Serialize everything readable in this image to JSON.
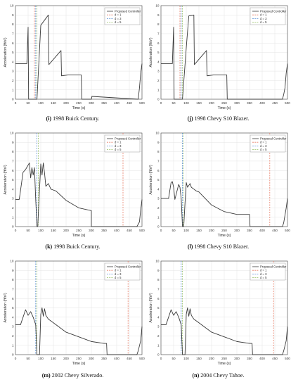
{
  "figure": {
    "legend_labels": [
      "Proposed Controller",
      "d = 1",
      "d = 3",
      "d = 5"
    ],
    "series_colors": {
      "controller": "#3a3a3a",
      "d1": "#e8806a",
      "d3": "#5a8fd6",
      "d5": "#9ac26a"
    },
    "ylabel": "Acceleration (ft/s²)",
    "xlabel": "Time (s)"
  },
  "captions": [
    {
      "tag": "(i)",
      "text": " 1998 Buick Century."
    },
    {
      "tag": "(j)",
      "text": " 1998 Chevy S10 Blazer."
    },
    {
      "tag": "(k)",
      "text": " 1998 Buick Century."
    },
    {
      "tag": "(l)",
      "text": " 1998 Chevy S10 Blazer."
    },
    {
      "tag": "(m)",
      "text": " 2002 Chevy Silverado."
    },
    {
      "tag": "(n)",
      "text": " 2004 Chevy Tahoe."
    }
  ],
  "chart_data": [
    {
      "type": "line",
      "xlim": [
        0,
        500
      ],
      "ylim": [
        0,
        10
      ],
      "xticks": [
        0,
        50,
        100,
        150,
        200,
        250,
        300,
        350,
        400,
        450,
        500
      ],
      "yticks": [
        0,
        1,
        2,
        3,
        4,
        5,
        6,
        7,
        8,
        9,
        10
      ],
      "xlabel": "Time (s)",
      "ylabel": "Acceleration (ft/s²)",
      "legend": "top-right",
      "vlines": [
        {
          "x": 75,
          "color": "#e8806a"
        },
        {
          "x": 80,
          "color": "#5a8fd6"
        },
        {
          "x": 85,
          "color": "#9ac26a"
        }
      ],
      "series": [
        {
          "name": "Proposed Controller",
          "color": "#3a3a3a",
          "x": [
            0,
            10,
            10,
            45,
            50,
            52,
            52,
            80,
            85,
            100,
            130,
            132,
            180,
            182,
            210,
            260,
            262,
            300,
            302,
            485,
            490,
            495,
            500
          ],
          "y": [
            3.8,
            3.8,
            3.8,
            3.8,
            7.7,
            0,
            0,
            0,
            0,
            7.9,
            9.0,
            3.7,
            5.2,
            2.5,
            2.6,
            2.6,
            0,
            0,
            0.3,
            0,
            1.2,
            2.8,
            3.8
          ]
        }
      ]
    },
    {
      "type": "line",
      "xlim": [
        0,
        500
      ],
      "ylim": [
        0,
        10
      ],
      "xticks": [
        0,
        50,
        100,
        150,
        200,
        250,
        300,
        350,
        400,
        450,
        500
      ],
      "yticks": [
        0,
        1,
        2,
        3,
        4,
        5,
        6,
        7,
        8,
        9,
        10
      ],
      "xlabel": "Time (s)",
      "ylabel": "Acceleration (ft/s²)",
      "legend": "top-right",
      "vlines": [
        {
          "x": 75,
          "color": "#e8806a"
        },
        {
          "x": 80,
          "color": "#5a8fd6"
        },
        {
          "x": 85,
          "color": "#9ac26a"
        }
      ],
      "series": [
        {
          "name": "Proposed Controller",
          "color": "#3a3a3a",
          "x": [
            0,
            10,
            45,
            50,
            52,
            52,
            85,
            100,
            110,
            130,
            132,
            180,
            182,
            210,
            260,
            262,
            480,
            485,
            490,
            495,
            500
          ],
          "y": [
            3.8,
            3.8,
            3.8,
            7.7,
            0,
            0,
            0,
            5.5,
            8.9,
            9.0,
            3.7,
            5.2,
            2.5,
            2.6,
            2.6,
            0,
            0,
            0.5,
            1.2,
            2.8,
            3.8
          ]
        }
      ]
    },
    {
      "type": "line",
      "xlim": [
        0,
        500
      ],
      "ylim": [
        0,
        10
      ],
      "xticks": [
        0,
        50,
        100,
        150,
        200,
        250,
        300,
        350,
        400,
        450,
        500
      ],
      "yticks": [
        0,
        1,
        2,
        3,
        4,
        5,
        6,
        7,
        8,
        9,
        10
      ],
      "xlabel": "Time (s)",
      "ylabel": "Acceleration (ft/s²)",
      "legend": "top-right",
      "vlines": [
        {
          "x": 85,
          "color": "#5a8fd6"
        },
        {
          "x": 90,
          "color": "#9ac26a"
        },
        {
          "x": 425,
          "color": "#e8806a"
        }
      ],
      "series": [
        {
          "name": "Proposed Controller",
          "color": "#3a3a3a",
          "x": [
            0,
            15,
            30,
            40,
            55,
            60,
            65,
            70,
            75,
            80,
            85,
            88,
            100,
            105,
            110,
            115,
            120,
            130,
            140,
            150,
            160,
            200,
            250,
            300,
            300,
            480,
            490,
            495,
            500
          ],
          "y": [
            2.9,
            2.9,
            5.8,
            6.1,
            6.8,
            5.2,
            6.3,
            5.5,
            6.3,
            2.9,
            0,
            0,
            6.7,
            5.5,
            6.8,
            5.7,
            4.3,
            4.6,
            4.0,
            3.9,
            3.8,
            2.8,
            2.0,
            1.7,
            0,
            0,
            0.5,
            1.8,
            2.9
          ]
        }
      ]
    },
    {
      "type": "line",
      "xlim": [
        0,
        500
      ],
      "ylim": [
        0,
        10
      ],
      "xticks": [
        0,
        50,
        100,
        150,
        200,
        250,
        300,
        350,
        400,
        450,
        500
      ],
      "yticks": [
        0,
        1,
        2,
        3,
        4,
        5,
        6,
        7,
        8,
        9,
        10
      ],
      "xlabel": "Time (s)",
      "ylabel": "Acceleration (ft/s²)",
      "legend": "top-right",
      "vlines": [
        {
          "x": 85,
          "color": "#5a8fd6"
        },
        {
          "x": 88,
          "color": "#9ac26a"
        },
        {
          "x": 430,
          "color": "#e8806a"
        }
      ],
      "series": [
        {
          "name": "Proposed Controller",
          "color": "#3a3a3a",
          "x": [
            0,
            30,
            40,
            45,
            50,
            55,
            70,
            75,
            80,
            85,
            90,
            95,
            100,
            105,
            115,
            120,
            130,
            140,
            150,
            200,
            250,
            300,
            350,
            352,
            480,
            485,
            495,
            500
          ],
          "y": [
            3.0,
            3.0,
            4.7,
            4.8,
            4.2,
            2.9,
            4.5,
            4.2,
            3.0,
            0,
            0,
            2.5,
            4.7,
            4.2,
            4.6,
            4.2,
            4.0,
            3.8,
            3.7,
            2.3,
            1.6,
            1.3,
            1.3,
            0,
            0,
            0.4,
            2.0,
            3.0
          ]
        }
      ]
    },
    {
      "type": "line",
      "xlim": [
        0,
        500
      ],
      "ylim": [
        0,
        10
      ],
      "xticks": [
        0,
        50,
        100,
        150,
        200,
        250,
        300,
        350,
        400,
        450,
        500
      ],
      "yticks": [
        0,
        1,
        2,
        3,
        4,
        5,
        6,
        7,
        8,
        9,
        10
      ],
      "xlabel": "Time (s)",
      "ylabel": "Acceleration (ft/s²)",
      "legend": "top-right",
      "vlines": [
        {
          "x": 80,
          "color": "#5a8fd6"
        },
        {
          "x": 85,
          "color": "#9ac26a"
        },
        {
          "x": 445,
          "color": "#e8806a"
        }
      ],
      "series": [
        {
          "name": "Proposed Controller",
          "color": "#3a3a3a",
          "x": [
            0,
            20,
            30,
            40,
            50,
            60,
            70,
            80,
            85,
            95,
            100,
            105,
            110,
            115,
            120,
            130,
            150,
            200,
            250,
            300,
            350,
            360,
            362,
            480,
            485,
            495,
            500
          ],
          "y": [
            3.2,
            3.2,
            4.0,
            4.8,
            4.2,
            4.6,
            4.0,
            3.2,
            0,
            0,
            4.3,
            5.0,
            4.1,
            4.9,
            4.2,
            3.8,
            3.4,
            2.4,
            1.9,
            1.4,
            1.2,
            1.2,
            0,
            0,
            0.4,
            1.5,
            3.0
          ]
        }
      ]
    },
    {
      "type": "line",
      "xlim": [
        0,
        500
      ],
      "ylim": [
        0,
        10
      ],
      "xticks": [
        0,
        50,
        100,
        150,
        200,
        250,
        300,
        350,
        400,
        450,
        500
      ],
      "yticks": [
        0,
        1,
        2,
        3,
        4,
        5,
        6,
        7,
        8,
        9,
        10
      ],
      "xlabel": "Time (s)",
      "ylabel": "Acceleration (ft/s²)",
      "legend": "top-right",
      "vlines": [
        {
          "x": 80,
          "color": "#5a8fd6"
        },
        {
          "x": 85,
          "color": "#9ac26a"
        },
        {
          "x": 445,
          "color": "#e8806a"
        }
      ],
      "series": [
        {
          "name": "Proposed Controller",
          "color": "#3a3a3a",
          "x": [
            0,
            20,
            30,
            40,
            50,
            60,
            70,
            80,
            85,
            95,
            100,
            105,
            110,
            115,
            120,
            130,
            150,
            200,
            250,
            300,
            350,
            360,
            362,
            480,
            485,
            495,
            500
          ],
          "y": [
            3.2,
            3.2,
            4.0,
            4.8,
            4.2,
            4.6,
            4.0,
            3.2,
            0,
            0,
            4.3,
            5.0,
            4.1,
            4.9,
            4.2,
            3.8,
            3.4,
            2.4,
            1.9,
            1.4,
            1.2,
            1.2,
            0,
            0,
            0.4,
            1.5,
            3.0
          ]
        }
      ]
    }
  ]
}
